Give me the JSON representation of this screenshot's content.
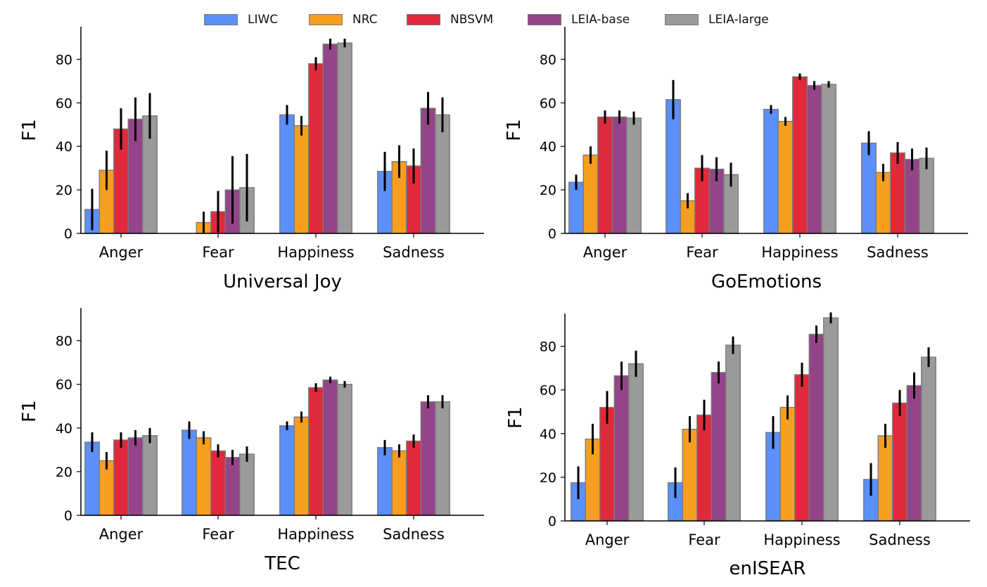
{
  "legend": {
    "items": [
      {
        "label": "LIWC",
        "color": "#5b8ff9"
      },
      {
        "label": "NRC",
        "color": "#f59e1f"
      },
      {
        "label": "NBSVM",
        "color": "#e0293a"
      },
      {
        "label": "LEIA-base",
        "color": "#944489"
      },
      {
        "label": "LEIA-large",
        "color": "#9a9a9c"
      }
    ]
  },
  "chart_data": [
    {
      "type": "bar",
      "xlabel": "Universal Joy",
      "ylabel": "F1",
      "categories": [
        "Anger",
        "Fear",
        "Happiness",
        "Sadness"
      ],
      "ylim": [
        0,
        95
      ],
      "yticks": [
        0,
        20,
        40,
        60,
        80
      ],
      "series": [
        {
          "name": "LIWC",
          "values": [
            11,
            0,
            54.5,
            28.5
          ],
          "errors": [
            9.5,
            0,
            4.5,
            9
          ]
        },
        {
          "name": "NRC",
          "values": [
            29,
            5,
            49.5,
            33
          ],
          "errors": [
            9,
            5,
            4.5,
            7.5
          ]
        },
        {
          "name": "NBSVM",
          "values": [
            48,
            10,
            78,
            31
          ],
          "errors": [
            9.5,
            9.5,
            3,
            8
          ]
        },
        {
          "name": "LEIA-base",
          "values": [
            52.5,
            20,
            87,
            57.5
          ],
          "errors": [
            10,
            15.5,
            2.5,
            7.5
          ]
        },
        {
          "name": "LEIA-large",
          "values": [
            54,
            21,
            87.5,
            54.5
          ],
          "errors": [
            10.5,
            15.5,
            2,
            8
          ]
        }
      ]
    },
    {
      "type": "bar",
      "xlabel": "GoEmotions",
      "ylabel": "F1",
      "categories": [
        "Anger",
        "Fear",
        "Happiness",
        "Sadness"
      ],
      "ylim": [
        0,
        95
      ],
      "yticks": [
        0,
        20,
        40,
        60,
        80
      ],
      "series": [
        {
          "name": "LIWC",
          "values": [
            23.5,
            61.5,
            57,
            41.5
          ],
          "errors": [
            3.5,
            9,
            2,
            5.5
          ]
        },
        {
          "name": "NRC",
          "values": [
            36,
            15,
            51.5,
            28
          ],
          "errors": [
            4,
            3.5,
            2,
            4
          ]
        },
        {
          "name": "NBSVM",
          "values": [
            53.5,
            30,
            72,
            37
          ],
          "errors": [
            3,
            6,
            1.5,
            5
          ]
        },
        {
          "name": "LEIA-base",
          "values": [
            53.5,
            29.5,
            68,
            34
          ],
          "errors": [
            3,
            5.5,
            2,
            5
          ]
        },
        {
          "name": "LEIA-large",
          "values": [
            53,
            27,
            68.5,
            34.5
          ],
          "errors": [
            3,
            5.5,
            1.5,
            5
          ]
        }
      ]
    },
    {
      "type": "bar",
      "xlabel": "TEC",
      "ylabel": "F1",
      "categories": [
        "Anger",
        "Fear",
        "Happiness",
        "Sadness"
      ],
      "ylim": [
        0,
        95
      ],
      "yticks": [
        0,
        20,
        40,
        60,
        80
      ],
      "series": [
        {
          "name": "LIWC",
          "values": [
            33.5,
            39,
            41,
            31
          ],
          "errors": [
            4.5,
            4,
            2,
            3.5
          ]
        },
        {
          "name": "NRC",
          "values": [
            25,
            35.5,
            45,
            29.5
          ],
          "errors": [
            4,
            3,
            2.5,
            3
          ]
        },
        {
          "name": "NBSVM",
          "values": [
            34.5,
            29.5,
            58.5,
            34
          ],
          "errors": [
            3.5,
            3,
            2,
            3
          ]
        },
        {
          "name": "LEIA-base",
          "values": [
            35.5,
            26.5,
            62,
            52
          ],
          "errors": [
            3.5,
            3.5,
            1.5,
            3
          ]
        },
        {
          "name": "LEIA-large",
          "values": [
            36.5,
            28,
            60,
            52
          ],
          "errors": [
            3.5,
            3.5,
            1.5,
            3
          ]
        }
      ]
    },
    {
      "type": "bar",
      "xlabel": "enISEAR",
      "ylabel": "F1",
      "categories": [
        "Anger",
        "Fear",
        "Happiness",
        "Sadness"
      ],
      "ylim": [
        0,
        95
      ],
      "yticks": [
        0,
        20,
        40,
        60,
        80
      ],
      "series": [
        {
          "name": "LIWC",
          "values": [
            17.5,
            17.5,
            40.5,
            19
          ],
          "errors": [
            7.5,
            7,
            7.5,
            7.5
          ]
        },
        {
          "name": "NRC",
          "values": [
            37.5,
            42,
            52,
            39
          ],
          "errors": [
            7,
            6,
            5.5,
            5.5
          ]
        },
        {
          "name": "NBSVM",
          "values": [
            52,
            48.5,
            67,
            54
          ],
          "errors": [
            7.5,
            7,
            5.5,
            6
          ]
        },
        {
          "name": "LEIA-base",
          "values": [
            66.5,
            68,
            85.5,
            62
          ],
          "errors": [
            6.5,
            5,
            4,
            6
          ]
        },
        {
          "name": "LEIA-large",
          "values": [
            72,
            80.5,
            93,
            75
          ],
          "errors": [
            6,
            4,
            2.5,
            4.5
          ]
        }
      ]
    }
  ]
}
